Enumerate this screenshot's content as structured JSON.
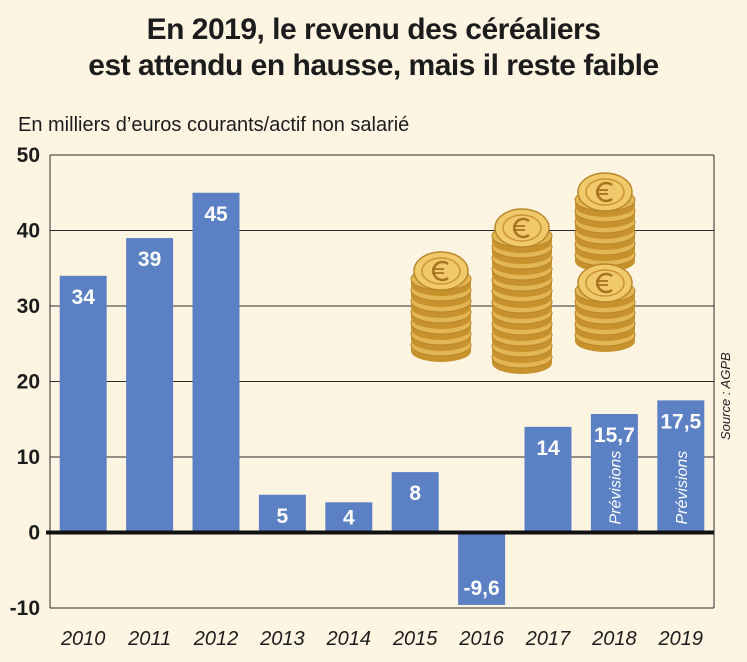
{
  "title": {
    "line1": "En 2019, le revenu des céréaliers",
    "line2": "est attendu en hausse, mais il reste faible"
  },
  "subtitle": "En milliers d’euros courants/actif non salarié",
  "source": "Source : AGPB",
  "colors": {
    "bar": "#5b80c3",
    "background": "#fdf5e2",
    "grid": "#2a2a2a",
    "coin": "#e3b654"
  },
  "chart_data": {
    "type": "bar",
    "categories": [
      "2010",
      "2011",
      "2012",
      "2013",
      "2014",
      "2015",
      "2016",
      "2017",
      "2018",
      "2019"
    ],
    "values": [
      34,
      39,
      45,
      5,
      4,
      8,
      -9.6,
      14,
      15.7,
      17.5
    ],
    "value_labels": [
      "34",
      "39",
      "45",
      "5",
      "4",
      "8",
      "-9,6",
      "14",
      "15,7",
      "17,5"
    ],
    "bar_notes": [
      "",
      "",
      "",
      "",
      "",
      "",
      "",
      "",
      "Prévisions",
      "Prévisions"
    ],
    "y_ticks": [
      50,
      40,
      30,
      20,
      10,
      0,
      -10
    ],
    "y_tick_labels": [
      "50",
      "40",
      "30",
      "20",
      "10",
      "0",
      "-10"
    ],
    "ylim": [
      -10,
      50
    ],
    "grid": true,
    "xlabel": "",
    "ylabel": ""
  },
  "decoration": {
    "coin_stacks": [
      {
        "coins": 7,
        "icon": "euro-coin-icon"
      },
      {
        "coins": 12,
        "icon": "euro-coin-icon"
      },
      {
        "coins": 6,
        "icon": "euro-coin-icon"
      },
      {
        "coins": 5,
        "icon": "euro-coin-icon"
      }
    ]
  }
}
